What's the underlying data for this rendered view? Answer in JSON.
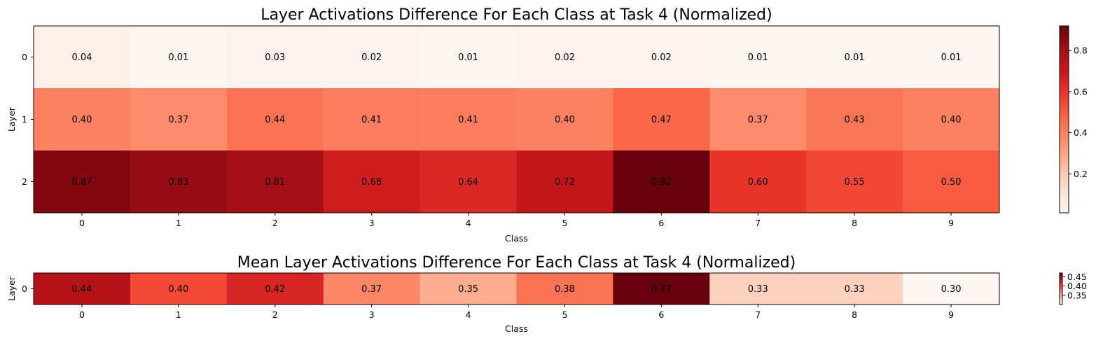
{
  "chart_data": [
    {
      "type": "heatmap",
      "title": "Layer Activations Difference For Each Class at Task 4 (Normalized)",
      "xlabel": "Class",
      "ylabel": "Layer",
      "x_categories": [
        "0",
        "1",
        "2",
        "3",
        "4",
        "5",
        "6",
        "7",
        "8",
        "9"
      ],
      "y_categories": [
        "0",
        "1",
        "2"
      ],
      "values": [
        [
          0.04,
          0.01,
          0.03,
          0.02,
          0.01,
          0.02,
          0.02,
          0.01,
          0.01,
          0.01
        ],
        [
          0.4,
          0.37,
          0.44,
          0.41,
          0.41,
          0.4,
          0.47,
          0.37,
          0.43,
          0.4
        ],
        [
          0.87,
          0.83,
          0.81,
          0.68,
          0.64,
          0.72,
          0.92,
          0.6,
          0.55,
          0.5
        ]
      ],
      "value_labels": [
        [
          "0.04",
          "0.01",
          "0.03",
          "0.02",
          "0.01",
          "0.02",
          "0.02",
          "0.01",
          "0.01",
          "0.01"
        ],
        [
          "0.40",
          "0.37",
          "0.44",
          "0.41",
          "0.41",
          "0.40",
          "0.47",
          "0.37",
          "0.43",
          "0.40"
        ],
        [
          "0.87",
          "0.83",
          "0.81",
          "0.68",
          "0.64",
          "0.72",
          "0.92",
          "0.60",
          "0.55",
          "0.50"
        ]
      ],
      "colormap": "Reds",
      "colorbar": {
        "vmin": 0.01,
        "vmax": 0.92,
        "ticks": [
          0.2,
          0.4,
          0.6,
          0.8
        ],
        "tick_labels": [
          "0.2",
          "0.4",
          "0.6",
          "0.8"
        ]
      }
    },
    {
      "type": "heatmap",
      "title": "Mean Layer Activations Difference For Each Class at Task 4 (Normalized)",
      "xlabel": "Class",
      "ylabel": "Layer",
      "x_categories": [
        "0",
        "1",
        "2",
        "3",
        "4",
        "5",
        "6",
        "7",
        "8",
        "9"
      ],
      "y_categories": [
        "0"
      ],
      "values": [
        [
          0.44,
          0.4,
          0.42,
          0.37,
          0.35,
          0.38,
          0.47,
          0.33,
          0.33,
          0.3
        ]
      ],
      "value_labels": [
        [
          "0.44",
          "0.40",
          "0.42",
          "0.37",
          "0.35",
          "0.38",
          "0.47",
          "0.33",
          "0.33",
          "0.30"
        ]
      ],
      "colormap": "Reds",
      "colorbar": {
        "vmin": 0.3,
        "vmax": 0.47,
        "ticks": [
          0.35,
          0.4,
          0.45
        ],
        "tick_labels": [
          "0.35",
          "0.40",
          "0.45"
        ]
      }
    }
  ]
}
